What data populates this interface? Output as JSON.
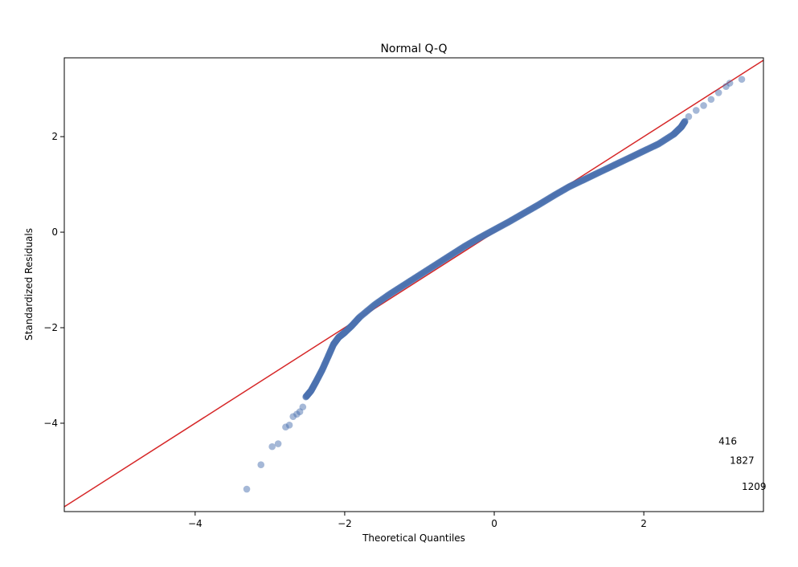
{
  "chart_data": {
    "type": "scatter",
    "title": "Normal Q-Q",
    "xlabel": "Theoretical Quantiles",
    "ylabel": "Standardized Residuals",
    "xlim": [
      -5.75,
      3.6
    ],
    "ylim": [
      -5.85,
      3.65
    ],
    "xticks": [
      -4,
      -2,
      0,
      2
    ],
    "yticks": [
      -4,
      -2,
      0,
      2
    ],
    "xtick_labels": [
      "−4",
      "−2",
      "0",
      "2"
    ],
    "ytick_labels": [
      "−4",
      "−2",
      "0",
      "2"
    ],
    "grid": false,
    "reference_line": {
      "slope": 1,
      "intercept": 0,
      "color": "#d62728"
    },
    "point_color": "#4c72b0",
    "point_alpha": 0.5,
    "outliers": [
      {
        "x": -3.31,
        "y": -5.38
      },
      {
        "x": -3.12,
        "y": -4.87
      },
      {
        "x": -2.97,
        "y": -4.49
      },
      {
        "x": -2.89,
        "y": -4.43
      },
      {
        "x": -2.79,
        "y": -4.08
      },
      {
        "x": -2.74,
        "y": -4.04
      },
      {
        "x": -2.69,
        "y": -3.86
      },
      {
        "x": -2.64,
        "y": -3.81
      },
      {
        "x": -2.6,
        "y": -3.76
      },
      {
        "x": -2.56,
        "y": -3.66
      },
      {
        "x": 2.6,
        "y": 2.42
      },
      {
        "x": 2.7,
        "y": 2.55
      },
      {
        "x": 2.8,
        "y": 2.65
      },
      {
        "x": 2.9,
        "y": 2.78
      },
      {
        "x": 3.0,
        "y": 2.92
      },
      {
        "x": 3.1,
        "y": 3.05
      },
      {
        "x": 3.15,
        "y": 3.12
      },
      {
        "x": 3.31,
        "y": 3.2
      }
    ],
    "curve": [
      {
        "x": -2.52,
        "y": -3.45
      },
      {
        "x": -2.45,
        "y": -3.32
      },
      {
        "x": -2.38,
        "y": -3.12
      },
      {
        "x": -2.3,
        "y": -2.88
      },
      {
        "x": -2.22,
        "y": -2.6
      },
      {
        "x": -2.15,
        "y": -2.35
      },
      {
        "x": -2.08,
        "y": -2.2
      },
      {
        "x": -2.0,
        "y": -2.1
      },
      {
        "x": -1.9,
        "y": -1.95
      },
      {
        "x": -1.8,
        "y": -1.78
      },
      {
        "x": -1.6,
        "y": -1.52
      },
      {
        "x": -1.4,
        "y": -1.3
      },
      {
        "x": -1.2,
        "y": -1.1
      },
      {
        "x": -1.0,
        "y": -0.9
      },
      {
        "x": -0.8,
        "y": -0.7
      },
      {
        "x": -0.6,
        "y": -0.5
      },
      {
        "x": -0.4,
        "y": -0.3
      },
      {
        "x": -0.2,
        "y": -0.12
      },
      {
        "x": 0.0,
        "y": 0.05
      },
      {
        "x": 0.2,
        "y": 0.22
      },
      {
        "x": 0.4,
        "y": 0.4
      },
      {
        "x": 0.6,
        "y": 0.58
      },
      {
        "x": 0.8,
        "y": 0.77
      },
      {
        "x": 1.0,
        "y": 0.95
      },
      {
        "x": 1.2,
        "y": 1.1
      },
      {
        "x": 1.4,
        "y": 1.25
      },
      {
        "x": 1.6,
        "y": 1.4
      },
      {
        "x": 1.8,
        "y": 1.55
      },
      {
        "x": 2.0,
        "y": 1.7
      },
      {
        "x": 2.2,
        "y": 1.85
      },
      {
        "x": 2.4,
        "y": 2.05
      },
      {
        "x": 2.5,
        "y": 2.2
      },
      {
        "x": 2.55,
        "y": 2.32
      }
    ],
    "annotations": [
      {
        "text": "416",
        "x": 3.0,
        "y": -4.45
      },
      {
        "text": "1827",
        "x": 3.15,
        "y": -4.85
      },
      {
        "text": "1209",
        "x": 3.31,
        "y": -5.4
      }
    ]
  }
}
